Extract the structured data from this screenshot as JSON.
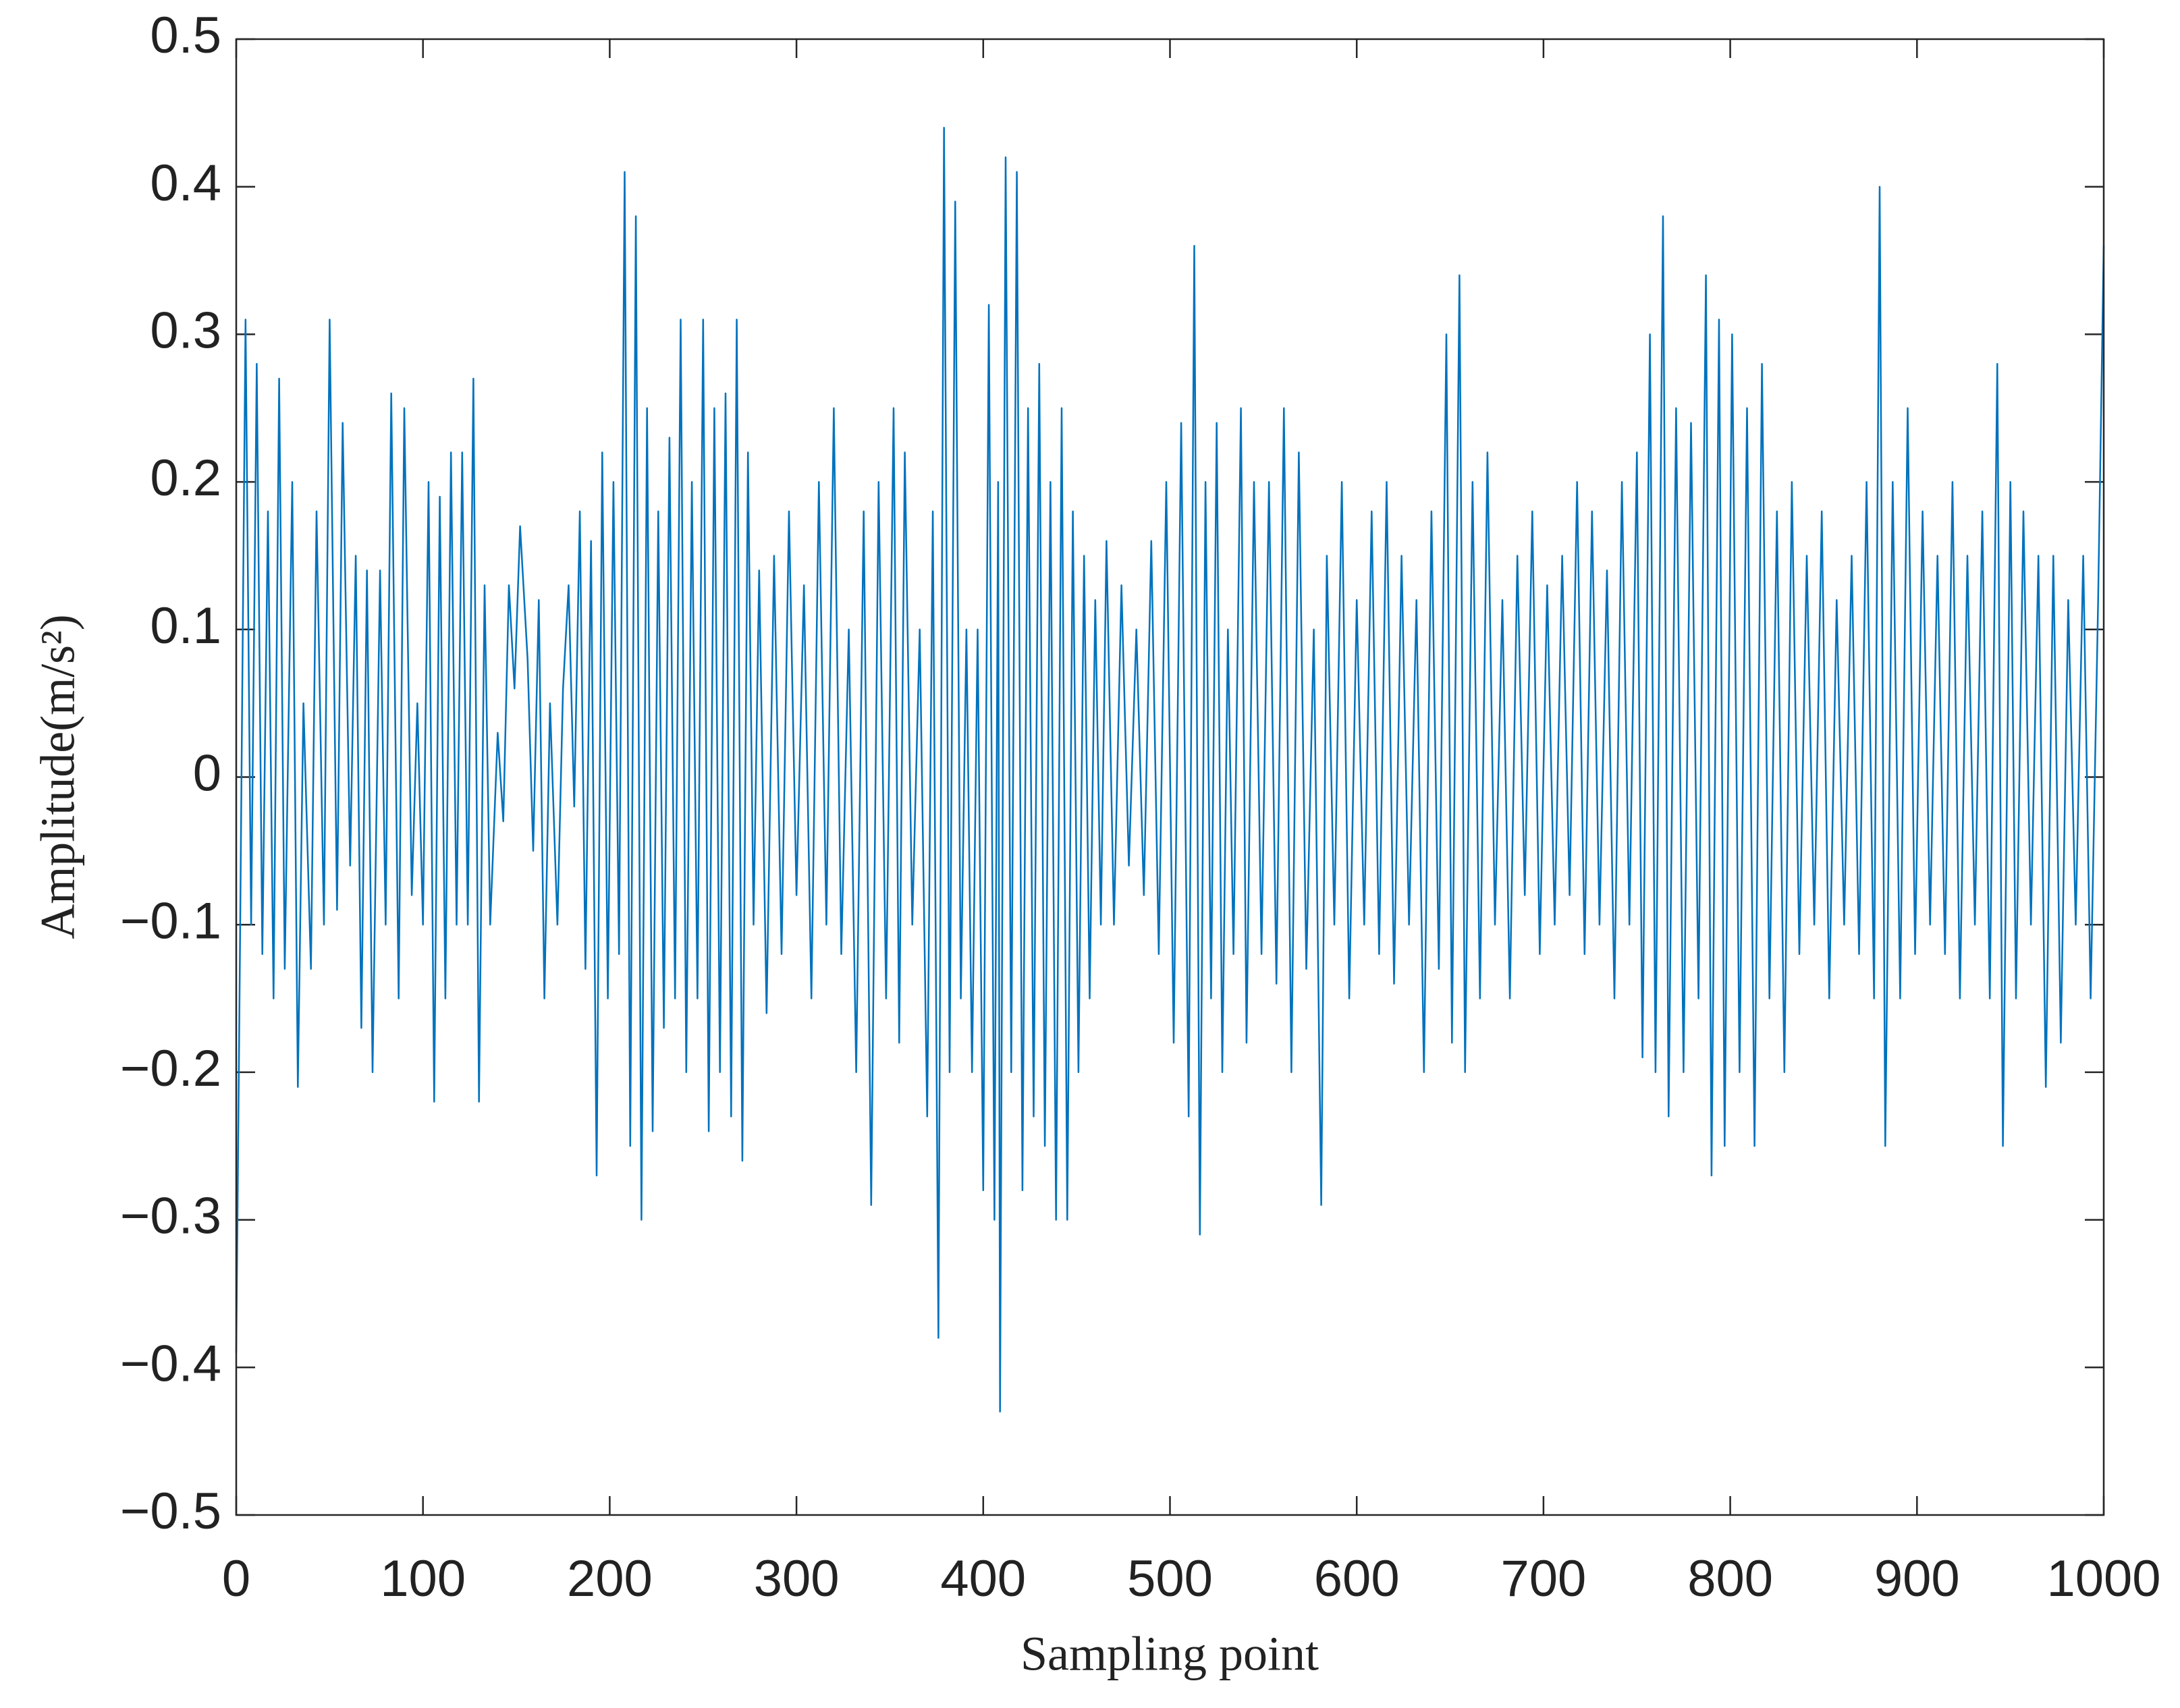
{
  "chart_data": {
    "type": "line",
    "xlabel": "Sampling point",
    "ylabel": "Amplitude(m/s²)",
    "xlim": [
      0,
      1000
    ],
    "ylim": [
      -0.5,
      0.5
    ],
    "xticks": [
      0,
      100,
      200,
      300,
      400,
      500,
      600,
      700,
      800,
      900,
      1000
    ],
    "yticks": [
      {
        "value": -0.5,
        "label": "−0.5"
      },
      {
        "value": -0.4,
        "label": "−0.4"
      },
      {
        "value": -0.3,
        "label": "−0.3"
      },
      {
        "value": -0.2,
        "label": "−0.2"
      },
      {
        "value": -0.1,
        "label": "−0.1"
      },
      0,
      0.1,
      0.2,
      0.3,
      0.4,
      0.5
    ],
    "series": [
      {
        "color": "#0072bd",
        "x": [
          0,
          2,
          5,
          8,
          11,
          14,
          17,
          20,
          23,
          26,
          30,
          33,
          36,
          40,
          43,
          47,
          50,
          54,
          57,
          61,
          64,
          67,
          70,
          73,
          77,
          80,
          83,
          87,
          90,
          94,
          97,
          100,
          103,
          106,
          109,
          112,
          115,
          118,
          121,
          124,
          127,
          130,
          133,
          136,
          140,
          143,
          146,
          149,
          152,
          156,
          159,
          162,
          165,
          168,
          172,
          175,
          178,
          181,
          184,
          187,
          190,
          193,
          196,
          199,
          202,
          205,
          208,
          211,
          214,
          217,
          220,
          223,
          226,
          229,
          232,
          235,
          238,
          241,
          244,
          247,
          250,
          253,
          256,
          259,
          262,
          265,
          268,
          271,
          274,
          277,
          280,
          284,
          288,
          292,
          296,
          300,
          304,
          308,
          312,
          316,
          320,
          324,
          328,
          332,
          336,
          340,
          344,
          348,
          352,
          355,
          358,
          362,
          366,
          370,
          373,
          376,
          379,
          382,
          385,
          388,
          391,
          394,
          397,
          400,
          403,
          406,
          408,
          409,
          412,
          415,
          418,
          421,
          424,
          427,
          430,
          433,
          436,
          439,
          442,
          445,
          448,
          451,
          454,
          457,
          460,
          463,
          466,
          470,
          474,
          478,
          482,
          486,
          490,
          494,
          498,
          502,
          506,
          510,
          513,
          516,
          519,
          522,
          525,
          528,
          531,
          534,
          538,
          541,
          545,
          549,
          553,
          557,
          561,
          565,
          569,
          573,
          577,
          581,
          584,
          588,
          592,
          596,
          600,
          604,
          608,
          612,
          616,
          620,
          624,
          628,
          632,
          636,
          640,
          644,
          648,
          651,
          655,
          658,
          662,
          666,
          670,
          674,
          678,
          682,
          686,
          690,
          694,
          698,
          702,
          706,
          710,
          714,
          718,
          722,
          726,
          730,
          734,
          738,
          742,
          746,
          750,
          753,
          757,
          760,
          764,
          767,
          771,
          775,
          779,
          783,
          787,
          790,
          794,
          797,
          801,
          805,
          809,
          813,
          817,
          821,
          825,
          829,
          833,
          837,
          841,
          845,
          849,
          853,
          857,
          861,
          865,
          869,
          873,
          877,
          880,
          883,
          887,
          891,
          895,
          899,
          903,
          907,
          911,
          915,
          919,
          923,
          927,
          931,
          935,
          939,
          943,
          946,
          950,
          953,
          957,
          961,
          965,
          969,
          973,
          977,
          981,
          985,
          989,
          993,
          997,
          1000
        ],
        "values": [
          -0.39,
          -0.12,
          0.31,
          -0.1,
          0.28,
          -0.12,
          0.18,
          -0.15,
          0.27,
          -0.13,
          0.2,
          -0.21,
          0.05,
          -0.13,
          0.18,
          -0.1,
          0.31,
          -0.09,
          0.24,
          -0.06,
          0.15,
          -0.17,
          0.14,
          -0.2,
          0.14,
          -0.1,
          0.26,
          -0.15,
          0.25,
          -0.08,
          0.05,
          -0.1,
          0.2,
          -0.22,
          0.19,
          -0.15,
          0.22,
          -0.1,
          0.22,
          -0.1,
          0.27,
          -0.22,
          0.13,
          -0.1,
          0.03,
          -0.03,
          0.13,
          0.06,
          0.17,
          0.08,
          -0.05,
          0.12,
          -0.15,
          0.05,
          -0.1,
          0.06,
          0.13,
          -0.02,
          0.18,
          -0.13,
          0.16,
          -0.27,
          0.22,
          -0.15,
          0.2,
          -0.12,
          0.41,
          -0.25,
          0.38,
          -0.3,
          0.25,
          -0.24,
          0.18,
          -0.17,
          0.23,
          -0.15,
          0.31,
          -0.2,
          0.2,
          -0.15,
          0.31,
          -0.24,
          0.25,
          -0.2,
          0.26,
          -0.23,
          0.31,
          -0.26,
          0.22,
          -0.1,
          0.14,
          -0.16,
          0.15,
          -0.12,
          0.18,
          -0.08,
          0.13,
          -0.15,
          0.2,
          -0.1,
          0.25,
          -0.12,
          0.1,
          -0.2,
          0.18,
          -0.29,
          0.2,
          -0.15,
          0.25,
          -0.18,
          0.22,
          -0.1,
          0.1,
          -0.23,
          0.18,
          -0.38,
          0.44,
          -0.2,
          0.39,
          -0.15,
          0.1,
          -0.2,
          0.1,
          -0.28,
          0.32,
          -0.3,
          0.2,
          -0.43,
          0.42,
          -0.2,
          0.41,
          -0.28,
          0.25,
          -0.23,
          0.28,
          -0.25,
          0.2,
          -0.3,
          0.25,
          -0.3,
          0.18,
          -0.2,
          0.15,
          -0.15,
          0.12,
          -0.1,
          0.16,
          -0.1,
          0.13,
          -0.06,
          0.1,
          -0.08,
          0.16,
          -0.12,
          0.2,
          -0.18,
          0.24,
          -0.23,
          0.36,
          -0.31,
          0.2,
          -0.15,
          0.24,
          -0.2,
          0.1,
          -0.12,
          0.25,
          -0.18,
          0.2,
          -0.12,
          0.2,
          -0.14,
          0.25,
          -0.2,
          0.22,
          -0.13,
          0.1,
          -0.29,
          0.15,
          -0.1,
          0.2,
          -0.15,
          0.12,
          -0.1,
          0.18,
          -0.12,
          0.2,
          -0.14,
          0.15,
          -0.1,
          0.12,
          -0.2,
          0.18,
          -0.13,
          0.3,
          -0.18,
          0.34,
          -0.2,
          0.2,
          -0.15,
          0.22,
          -0.1,
          0.12,
          -0.15,
          0.15,
          -0.08,
          0.18,
          -0.12,
          0.13,
          -0.1,
          0.15,
          -0.08,
          0.2,
          -0.12,
          0.18,
          -0.1,
          0.14,
          -0.15,
          0.2,
          -0.1,
          0.22,
          -0.19,
          0.3,
          -0.2,
          0.38,
          -0.23,
          0.25,
          -0.2,
          0.24,
          -0.15,
          0.34,
          -0.27,
          0.31,
          -0.25,
          0.3,
          -0.2,
          0.25,
          -0.25,
          0.28,
          -0.15,
          0.18,
          -0.2,
          0.2,
          -0.12,
          0.15,
          -0.1,
          0.18,
          -0.15,
          0.12,
          -0.1,
          0.15,
          -0.12,
          0.2,
          -0.15,
          0.4,
          -0.25,
          0.2,
          -0.15,
          0.25,
          -0.12,
          0.18,
          -0.1,
          0.15,
          -0.12,
          0.2,
          -0.15,
          0.15,
          -0.1,
          0.18,
          -0.15,
          0.28,
          -0.25,
          0.2,
          -0.15,
          0.18,
          -0.1,
          0.15,
          -0.21,
          0.15,
          -0.18,
          0.12,
          -0.1,
          0.15,
          -0.15,
          0.12,
          0.36
        ]
      }
    ]
  }
}
